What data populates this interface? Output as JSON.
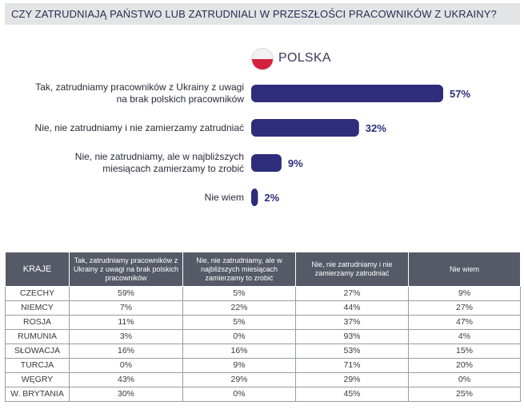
{
  "title": "CZY ZATRUDNIAJĄ PAŃSTWO LUB ZATRUDNIALI W PRZESZŁOŚCI PRACOWNIKÓW Z UKRAINY?",
  "country": "POLSKA",
  "colors": {
    "bar": "#2e2d7b",
    "title_bg": "#e3e4e6",
    "header_bg": "#555a66"
  },
  "chart_data": {
    "type": "bar",
    "orientation": "horizontal",
    "title": "POLSKA",
    "categories": [
      [
        "Tak, zatrudniamy pracowników z Ukrainy z uwagi",
        "na brak polskich pracowników"
      ],
      [
        "Nie, nie zatrudniamy i nie zamierzamy zatrudniać"
      ],
      [
        "Nie, nie zatrudniamy, ale w najbliższych",
        "miesiącach zamierzamy to zrobić"
      ],
      [
        "Nie wiem"
      ]
    ],
    "values": [
      57,
      32,
      9,
      2
    ],
    "labels": [
      "57%",
      "32%",
      "9%",
      "2%"
    ],
    "unit": "%"
  },
  "table": {
    "headers": [
      "KRAJE",
      "Tak, zatrudniamy pracowników z Ukrainy z uwagi na brak polskich pracowników",
      "Nie, nie zatrudniamy, ale w najbliższych miesiącach zamierzamy to zrobić",
      "Nie, nie zatrudniamy i nie zamierzamy zatrudniać",
      "Nie wiem"
    ],
    "rows": [
      [
        "CZECHY",
        "59%",
        "5%",
        "27%",
        "9%"
      ],
      [
        "NIEMCY",
        "7%",
        "22%",
        "44%",
        "27%"
      ],
      [
        "ROSJA",
        "11%",
        "5%",
        "37%",
        "47%"
      ],
      [
        "RUMUNIA",
        "3%",
        "0%",
        "93%",
        "4%"
      ],
      [
        "SŁOWACJA",
        "16%",
        "16%",
        "53%",
        "15%"
      ],
      [
        "TURCJA",
        "0%",
        "9%",
        "71%",
        "20%"
      ],
      [
        "WĘGRY",
        "43%",
        "29%",
        "29%",
        "0%"
      ],
      [
        "W. BRYTANIA",
        "30%",
        "0%",
        "45%",
        "25%"
      ]
    ]
  }
}
